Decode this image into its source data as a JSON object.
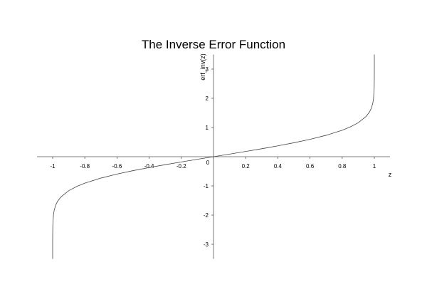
{
  "chart_data": {
    "type": "line",
    "title": "The Inverse Error Function",
    "xlabel": "z",
    "ylabel": "erf_inv(z)",
    "xlim": [
      -1.0,
      1.0
    ],
    "ylim": [
      -3.5,
      3.5
    ],
    "grid": false,
    "x_ticks": [
      "-1",
      "-0.8",
      "-0.6",
      "-0.4",
      "-0.2",
      "0",
      "0.2",
      "0.4",
      "0.6",
      "0.8",
      "1"
    ],
    "y_ticks": [
      "-3",
      "-2",
      "-1",
      "1",
      "2",
      "3"
    ],
    "series": [
      {
        "x": [
          -0.99999,
          -0.9999,
          -0.999,
          -0.995,
          -0.99,
          -0.98,
          -0.97,
          -0.95,
          -0.9,
          -0.85,
          -0.8,
          -0.7,
          -0.6,
          -0.5,
          -0.4,
          -0.3,
          -0.2,
          -0.1,
          0,
          0.1,
          0.2,
          0.3,
          0.4,
          0.5,
          0.6,
          0.7,
          0.8,
          0.85,
          0.9,
          0.95,
          0.97,
          0.98,
          0.99,
          0.995,
          0.999,
          0.9999,
          0.99999
        ],
        "y": [
          -3.123,
          -2.751,
          -2.327,
          -1.985,
          -1.822,
          -1.645,
          -1.534,
          -1.386,
          -1.163,
          -1.018,
          -0.906,
          -0.733,
          -0.595,
          -0.477,
          -0.371,
          -0.273,
          -0.179,
          -0.089,
          0,
          0.089,
          0.179,
          0.273,
          0.371,
          0.477,
          0.595,
          0.733,
          0.906,
          1.018,
          1.163,
          1.386,
          1.534,
          1.645,
          1.822,
          1.985,
          2.327,
          2.751,
          3.123
        ]
      }
    ]
  }
}
